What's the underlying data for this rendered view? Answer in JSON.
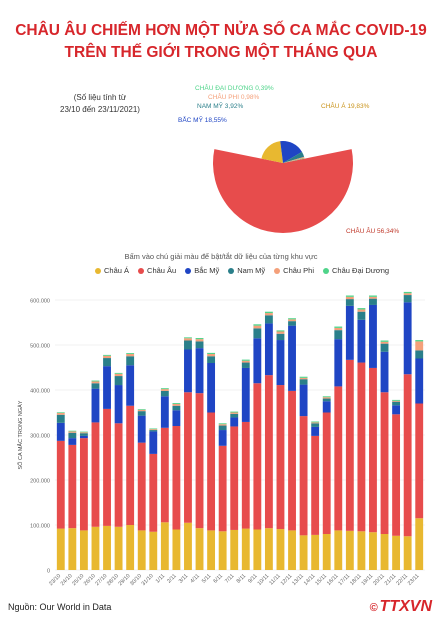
{
  "title_line1": "CHÂU ÂU CHIẾM HƠN MỘT NỬA SỐ CA MẮC COVID-19",
  "title_line2": "TRÊN THẾ GIỚI TRONG MỘT THÁNG QUA",
  "note_line1": "(Số liệu tính từ",
  "note_line2": "23/10 đến 23/11/2021)",
  "hint": "Bấm vào chú giải màu để bật/tắt dữ liệu của từng khu vực",
  "source": "Nguồn: Our World in Data",
  "logo": "TTXVN",
  "colors": {
    "asia": "#e8b830",
    "europe": "#e74c4c",
    "namerica": "#1f45c4",
    "samerica": "#2a7f8a",
    "africa": "#f4a07a",
    "oceania": "#4fd48a"
  },
  "legend": [
    "Châu Á",
    "Châu Âu",
    "Bắc Mỹ",
    "Nam Mỹ",
    "Châu Phi",
    "Châu Đại Dương"
  ],
  "chart_data": [
    {
      "type": "pie",
      "slices": [
        {
          "label": "CHÂU ÂU 56,34%",
          "region": "europe",
          "value": 56.34
        },
        {
          "label": "CHÂU Á 19,83%",
          "region": "asia",
          "value": 19.83
        },
        {
          "label": "BẮC MỸ 18,55%",
          "region": "namerica",
          "value": 18.55
        },
        {
          "label": "NAM MỸ 3,92%",
          "region": "samerica",
          "value": 3.92
        },
        {
          "label": "CHÂU PHI 0,98%",
          "region": "africa",
          "value": 0.98
        },
        {
          "label": "CHÂU ĐẠI DƯƠNG 0,39%",
          "region": "oceania",
          "value": 0.39
        }
      ]
    },
    {
      "type": "bar",
      "stacked": true,
      "ylabel": "SỐ CA MẮC TRONG NGÀY",
      "ylim": [
        0,
        600000
      ],
      "yticks": [
        "0",
        "100.000",
        "200.000",
        "300.000",
        "400.000",
        "500.000",
        "600.000"
      ],
      "categories": [
        "23/10",
        "24/10",
        "25/10",
        "26/10",
        "27/10",
        "28/10",
        "29/10",
        "30/10",
        "31/10",
        "1/11",
        "2/11",
        "3/11",
        "4/11",
        "5/11",
        "6/11",
        "7/11",
        "8/11",
        "9/11",
        "10/11",
        "11/11",
        "12/11",
        "13/11",
        "14/11",
        "15/11",
        "16/11",
        "17/11",
        "18/11",
        "19/11",
        "20/11",
        "21/11",
        "22/11",
        "23/11"
      ],
      "xlabels_shown": [
        "23/10",
        "24/10",
        "25/10",
        "26/10",
        "27/10",
        "28/10",
        "29/10",
        "30/10",
        "31/10",
        "1/11",
        "2/11",
        "3/11",
        "4/11",
        "5/11",
        "6/11",
        "7/11",
        "8/11",
        "9/11",
        "10/11",
        "11/11",
        "12/11",
        "13/11",
        "14/11",
        "15/11",
        "16/11",
        "17/11",
        "18/11",
        "19/11",
        "20/11",
        "21/11",
        "22/11",
        "23/11"
      ],
      "series": [
        {
          "name": "Châu Á",
          "region": "asia",
          "values": [
            92000,
            93000,
            88000,
            96000,
            98000,
            96000,
            100000,
            88000,
            85000,
            106000,
            90000,
            105000,
            93000,
            88000,
            86000,
            89000,
            92000,
            90000,
            93000,
            91000,
            88000,
            77000,
            78000,
            80000,
            88000,
            87000,
            86000,
            84000,
            80000,
            76000,
            75000,
            115000
          ]
        },
        {
          "name": "Châu Âu",
          "region": "europe",
          "values": [
            195000,
            185000,
            205000,
            232000,
            260000,
            230000,
            265000,
            195000,
            173000,
            210000,
            230000,
            290000,
            300000,
            262000,
            190000,
            230000,
            237000,
            325000,
            340000,
            320000,
            310000,
            265000,
            220000,
            270000,
            320000,
            380000,
            375000,
            365000,
            315000,
            270000,
            360000,
            255000
          ]
        },
        {
          "name": "Bắc Mỹ",
          "region": "namerica",
          "values": [
            40000,
            15000,
            5000,
            75000,
            95000,
            85000,
            90000,
            60000,
            50000,
            70000,
            35000,
            95000,
            100000,
            110000,
            35000,
            20000,
            120000,
            100000,
            115000,
            100000,
            145000,
            70000,
            20000,
            25000,
            105000,
            120000,
            95000,
            140000,
            90000,
            20000,
            160000,
            100000
          ]
        },
        {
          "name": "Nam Mỹ",
          "region": "samerica",
          "values": [
            18000,
            12000,
            6000,
            12000,
            18000,
            20000,
            20000,
            10000,
            3000,
            12000,
            10000,
            20000,
            15000,
            15000,
            10000,
            8000,
            12000,
            22000,
            18000,
            14000,
            10000,
            12000,
            8000,
            6000,
            20000,
            15000,
            18000,
            14000,
            18000,
            8000,
            16000,
            18000
          ]
        },
        {
          "name": "Châu Phi",
          "region": "africa",
          "values": [
            4000,
            3000,
            2000,
            4000,
            5000,
            5000,
            5000,
            3000,
            2000,
            4000,
            4000,
            5000,
            5000,
            5000,
            3000,
            3000,
            4000,
            6000,
            5000,
            5000,
            4000,
            3000,
            2000,
            3000,
            5000,
            5000,
            5000,
            4000,
            4000,
            2000,
            4000,
            20000
          ]
        },
        {
          "name": "Châu Đại Dương",
          "region": "oceania",
          "values": [
            1500,
            1500,
            1500,
            2000,
            2000,
            2000,
            2000,
            1500,
            1500,
            2000,
            2000,
            2000,
            2500,
            2500,
            2000,
            2000,
            2500,
            3000,
            3000,
            2500,
            2500,
            2500,
            2000,
            2000,
            3000,
            3000,
            3000,
            3000,
            3000,
            2000,
            3000,
            3000
          ]
        }
      ]
    }
  ]
}
